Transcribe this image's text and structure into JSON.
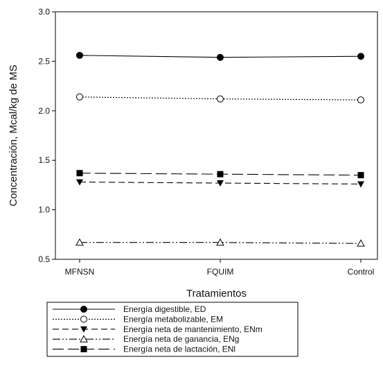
{
  "chart_data": {
    "type": "line",
    "categories": [
      "MFNSN",
      "FQUIM",
      "Control"
    ],
    "xlabel": "Tratamientos",
    "ylabel": "Concentración, Mcal/kg de MS",
    "ylim": [
      0.5,
      3.0
    ],
    "yticks": [
      "0.5",
      "1.0",
      "1.5",
      "2.0",
      "2.5",
      "3.0"
    ],
    "grid": false,
    "legend_position": "bottom-left",
    "series": [
      {
        "name": "Energía digestible, ED",
        "values": [
          2.56,
          2.54,
          2.55
        ],
        "marker": "circle-filled",
        "dash": "solid",
        "color": "#000000"
      },
      {
        "name": "Energía metabolizable, EM",
        "values": [
          2.14,
          2.12,
          2.11
        ],
        "marker": "circle-open",
        "dash": "dotted",
        "color": "#000000"
      },
      {
        "name": "Energía neta de mantenimiento, ENm",
        "values": [
          1.28,
          1.27,
          1.26
        ],
        "marker": "triangle-down-filled",
        "dash": "dashed",
        "color": "#000000"
      },
      {
        "name": "Energía neta de ganancia, ENg",
        "values": [
          0.67,
          0.67,
          0.66
        ],
        "marker": "triangle-up-open",
        "dash": "dash-dot-dot",
        "color": "#000000"
      },
      {
        "name": "Energía neta de lactación, ENl",
        "values": [
          1.37,
          1.36,
          1.35
        ],
        "marker": "square-filled",
        "dash": "long-dash",
        "color": "#000000"
      }
    ]
  }
}
